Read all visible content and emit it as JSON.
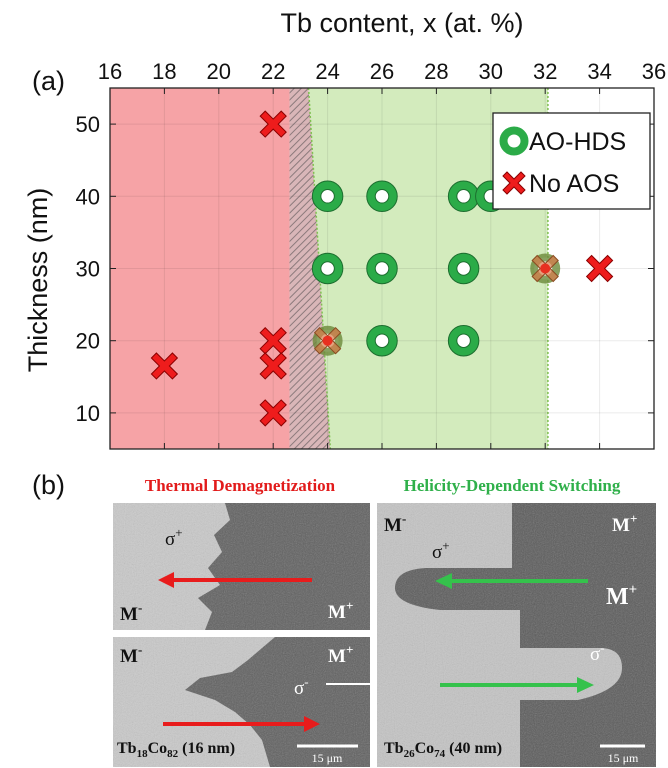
{
  "panel_a_label": "(a)",
  "panel_b_label": "(b)",
  "chart_data": {
    "type": "scatter",
    "xlabel": "Tb content, x (at. %)",
    "ylabel": "Thickness (nm)",
    "xlim": [
      16,
      36
    ],
    "ylim": [
      5,
      55
    ],
    "x_ticks": [
      "16",
      "18",
      "20",
      "22",
      "24",
      "26",
      "28",
      "30",
      "32",
      "34",
      "36"
    ],
    "y_ticks": [
      "10",
      "20",
      "30",
      "40",
      "50"
    ],
    "x_axis_position": "top",
    "grid": true,
    "legend_position": "top-right",
    "regions": [
      {
        "name": "thermal-demagnetization-region",
        "color": "#f6a3a6",
        "x_range": [
          16,
          22.6
        ]
      },
      {
        "name": "transition-hatched-region",
        "color": "#c9a3a6",
        "x_range": [
          22.6,
          23.3
        ]
      },
      {
        "name": "hds-region",
        "color": "#d3ebbd",
        "x_range": [
          23.3,
          32.1
        ]
      }
    ],
    "series": [
      {
        "name": "AO-HDS",
        "marker": "ring",
        "color": "#2bab48",
        "points": [
          [
            24,
            40
          ],
          [
            26,
            40
          ],
          [
            29,
            40
          ],
          [
            30,
            40
          ],
          [
            24,
            30
          ],
          [
            26,
            30
          ],
          [
            29,
            30
          ],
          [
            26,
            20
          ],
          [
            29,
            20
          ]
        ]
      },
      {
        "name": "No AOS",
        "marker": "x",
        "color": "#ee1c1c",
        "points": [
          [
            22,
            50
          ],
          [
            22,
            20
          ],
          [
            22,
            16.5
          ],
          [
            22,
            10
          ],
          [
            18,
            16.5
          ],
          [
            34,
            30
          ]
        ]
      },
      {
        "name": "",
        "marker": "mixed",
        "color": "#c8a060",
        "points": [
          [
            24,
            20
          ],
          [
            32,
            30
          ]
        ]
      }
    ]
  },
  "panel_b": {
    "left_heading": "Thermal Demagnetization",
    "right_heading": "Helicity-Dependent Switching",
    "left_heading_color": "#e21b1b",
    "right_heading_color": "#2fb04a",
    "images": {
      "top_left": {
        "sigma": "σ",
        "sigma_sup": "+",
        "m_left": "M",
        "m_left_sup": "-",
        "m_right": "M",
        "m_right_sup": "+"
      },
      "bottom_left": {
        "m_left": "M",
        "m_left_sup": "-",
        "m_right": "M",
        "m_right_sup": "+",
        "sigma": "σ",
        "sigma_sup": "-",
        "sample": "Tb",
        "sample_sub1": "18",
        "sample_mid": "Co",
        "sample_sub2": "82",
        "sample_tail": " (16 nm)",
        "scale": "15 μm"
      },
      "right": {
        "m_tl": "M",
        "m_tl_sup": "-",
        "m_tr": "M",
        "m_tr_sup": "+",
        "sigma1": "σ",
        "sigma1_sup": "+",
        "m_mid": "M",
        "m_mid_sup": "+",
        "sigma2": "σ",
        "sigma2_sup": "-",
        "sample": "Tb",
        "sample_sub1": "26",
        "sample_mid": "Co",
        "sample_sub2": "74",
        "sample_tail": " (40 nm)",
        "scale": "15 μm"
      }
    }
  }
}
